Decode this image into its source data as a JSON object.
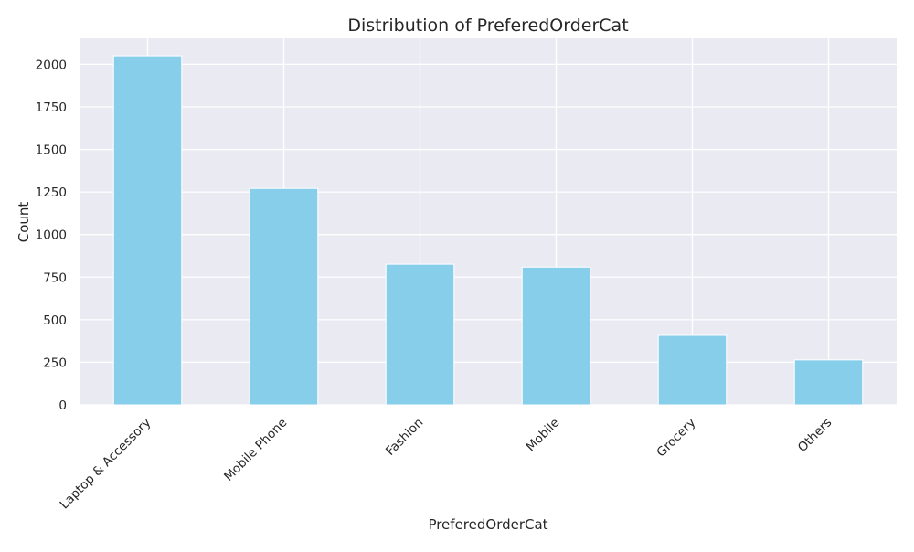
{
  "chart_data": {
    "type": "bar",
    "title": "Distribution of PreferedOrderCat",
    "xlabel": "PreferedOrderCat",
    "ylabel": "Count",
    "categories": [
      "Laptop & Accessory",
      "Mobile Phone",
      "Fashion",
      "Mobile",
      "Grocery",
      "Others"
    ],
    "values": [
      2050,
      1271,
      826,
      809,
      408,
      264
    ],
    "ylim": [
      0,
      2152.5
    ],
    "yticks": [
      0,
      250,
      500,
      750,
      1000,
      1250,
      1500,
      1750,
      2000
    ],
    "grid": true,
    "colors": {
      "bar": "#87ceeb",
      "plot_background": "#eaeaf2",
      "grid": "#ffffff",
      "text": "#262626"
    }
  }
}
